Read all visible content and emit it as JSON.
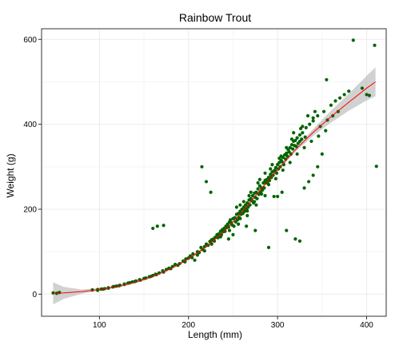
{
  "chart_data": {
    "type": "scatter",
    "title": "Rainbow Trout",
    "xlabel": "Length (mm)",
    "ylabel": "Weight (g)",
    "xlim": [
      35,
      422
    ],
    "ylim": [
      -52,
      625
    ],
    "xticks": [
      100,
      200,
      300,
      400
    ],
    "yticks": [
      0,
      200,
      400,
      600
    ],
    "grid": true,
    "legend": "none",
    "colors": {
      "points": "#006400",
      "fit": "#ff0000",
      "ribbon": "#bdbdbd",
      "border": "#333333",
      "grid": "#ebebeb"
    },
    "series": [
      {
        "type": "scatter",
        "points": [
          [
            48,
            3
          ],
          [
            52,
            2
          ],
          [
            55,
            4
          ],
          [
            92,
            10
          ],
          [
            98,
            11
          ],
          [
            102,
            12
          ],
          [
            106,
            13
          ],
          [
            110,
            15
          ],
          [
            115,
            17
          ],
          [
            119,
            19
          ],
          [
            123,
            21
          ],
          [
            128,
            23
          ],
          [
            132,
            26
          ],
          [
            137,
            29
          ],
          [
            141,
            31
          ],
          [
            145,
            34
          ],
          [
            150,
            37
          ],
          [
            156,
            41
          ],
          [
            160,
            44
          ],
          [
            163,
            47
          ],
          [
            167,
            50
          ],
          [
            171,
            55
          ],
          [
            175,
            58
          ],
          [
            178,
            61
          ],
          [
            182,
            65
          ],
          [
            185,
            70
          ],
          [
            190,
            72
          ],
          [
            194,
            78
          ],
          [
            197,
            83
          ],
          [
            200,
            85
          ],
          [
            202,
            90
          ],
          [
            205,
            95
          ],
          [
            207,
            80
          ],
          [
            210,
            100
          ],
          [
            212,
            98
          ],
          [
            214,
            110
          ],
          [
            216,
            105
          ],
          [
            218,
            112
          ],
          [
            220,
            118
          ],
          [
            222,
            115
          ],
          [
            224,
            124
          ],
          [
            226,
            128
          ],
          [
            228,
            130
          ],
          [
            230,
            134
          ],
          [
            232,
            140
          ],
          [
            234,
            142
          ],
          [
            236,
            148
          ],
          [
            238,
            152
          ],
          [
            240,
            155
          ],
          [
            242,
            160
          ],
          [
            244,
            165
          ],
          [
            246,
            170
          ],
          [
            248,
            168
          ],
          [
            250,
            178
          ],
          [
            252,
            180
          ],
          [
            254,
            188
          ],
          [
            256,
            190
          ],
          [
            258,
            195
          ],
          [
            260,
            200
          ],
          [
            262,
            205
          ],
          [
            264,
            210
          ],
          [
            266,
            215
          ],
          [
            268,
            222
          ],
          [
            270,
            225
          ],
          [
            272,
            232
          ],
          [
            274,
            238
          ],
          [
            276,
            240
          ],
          [
            278,
            248
          ],
          [
            280,
            255
          ],
          [
            282,
            250
          ],
          [
            284,
            262
          ],
          [
            286,
            268
          ],
          [
            288,
            270
          ],
          [
            290,
            275
          ],
          [
            292,
            282
          ],
          [
            294,
            288
          ],
          [
            296,
            290
          ],
          [
            298,
            298
          ],
          [
            300,
            305
          ],
          [
            302,
            310
          ],
          [
            304,
            315
          ],
          [
            306,
            322
          ],
          [
            308,
            328
          ],
          [
            310,
            332
          ],
          [
            312,
            340
          ],
          [
            314,
            345
          ],
          [
            316,
            352
          ],
          [
            318,
            360
          ],
          [
            320,
            362
          ],
          [
            322,
            368
          ],
          [
            325,
            375
          ],
          [
            328,
            380
          ],
          [
            332,
            392
          ],
          [
            336,
            400
          ],
          [
            340,
            408
          ],
          [
            345,
            420
          ],
          [
            352,
            430
          ],
          [
            360,
            445
          ],
          [
            365,
            455
          ],
          [
            370,
            462
          ],
          [
            375,
            470
          ],
          [
            380,
            478
          ],
          [
            395,
            485
          ],
          [
            400,
            470
          ],
          [
            160,
            155
          ],
          [
            165,
            160
          ],
          [
            172,
            162
          ],
          [
            215,
            300
          ],
          [
            220,
            265
          ],
          [
            225,
            240
          ],
          [
            245,
            130
          ],
          [
            250,
            140
          ],
          [
            265,
            160
          ],
          [
            275,
            150
          ],
          [
            290,
            110
          ],
          [
            300,
            230
          ],
          [
            310,
            150
          ],
          [
            320,
            130
          ],
          [
            325,
            125
          ],
          [
            330,
            250
          ],
          [
            335,
            265
          ],
          [
            340,
            280
          ],
          [
            345,
            300
          ],
          [
            350,
            330
          ],
          [
            355,
            505
          ],
          [
            385,
            598
          ],
          [
            403,
            468
          ],
          [
            409,
            586
          ],
          [
            411,
            301
          ],
          [
            305,
            240
          ],
          [
            296,
            230
          ],
          [
            286,
            232
          ],
          [
            276,
            210
          ],
          [
            266,
            185
          ],
          [
            256,
            165
          ],
          [
            246,
            150
          ],
          [
            236,
            135
          ],
          [
            226,
            118
          ],
          [
            218,
            102
          ],
          [
            210,
            92
          ],
          [
            204,
            86
          ],
          [
            196,
            76
          ],
          [
            188,
            68
          ],
          [
            180,
            60
          ],
          [
            172,
            52
          ],
          [
            164,
            46
          ],
          [
            158,
            42
          ],
          [
            152,
            38
          ],
          [
            146,
            33
          ],
          [
            140,
            30
          ],
          [
            134,
            27
          ],
          [
            128,
            24
          ],
          [
            122,
            20
          ],
          [
            116,
            18
          ],
          [
            110,
            14
          ],
          [
            104,
            12
          ],
          [
            98,
            9
          ],
          [
            254,
            205
          ],
          [
            262,
            218
          ],
          [
            270,
            240
          ],
          [
            278,
            262
          ],
          [
            286,
            285
          ],
          [
            294,
            305
          ],
          [
            302,
            320
          ],
          [
            310,
            345
          ],
          [
            318,
            380
          ],
          [
            326,
            390
          ],
          [
            334,
            420
          ],
          [
            342,
            430
          ],
          [
            258,
            178
          ],
          [
            266,
            196
          ],
          [
            274,
            218
          ],
          [
            282,
            236
          ],
          [
            290,
            258
          ],
          [
            298,
            272
          ],
          [
            306,
            292
          ],
          [
            314,
            310
          ],
          [
            322,
            330
          ],
          [
            330,
            345
          ],
          [
            338,
            360
          ],
          [
            346,
            372
          ],
          [
            354,
            385
          ],
          [
            239,
            147
          ],
          [
            243,
            157
          ],
          [
            247,
            175
          ],
          [
            251,
            160
          ],
          [
            255,
            175
          ],
          [
            259,
            188
          ],
          [
            263,
            195
          ],
          [
            267,
            205
          ],
          [
            271,
            220
          ],
          [
            275,
            228
          ],
          [
            279,
            235
          ],
          [
            283,
            245
          ],
          [
            287,
            262
          ],
          [
            291,
            268
          ],
          [
            295,
            280
          ],
          [
            299,
            285
          ],
          [
            303,
            300
          ],
          [
            307,
            305
          ],
          [
            311,
            325
          ],
          [
            315,
            330
          ],
          [
            319,
            350
          ],
          [
            323,
            355
          ],
          [
            327,
            365
          ],
          [
            331,
            370
          ],
          [
            229,
            125
          ],
          [
            233,
            133
          ],
          [
            237,
            140
          ],
          [
            241,
            148
          ],
          [
            245,
            158
          ],
          [
            249,
            163
          ],
          [
            253,
            170
          ],
          [
            257,
            180
          ],
          [
            261,
            190
          ],
          [
            265,
            200
          ],
          [
            269,
            210
          ],
          [
            273,
            215
          ],
          [
            277,
            225
          ],
          [
            281,
            240
          ],
          [
            285,
            250
          ],
          [
            289,
            265
          ],
          [
            293,
            275
          ],
          [
            297,
            292
          ],
          [
            301,
            295
          ],
          [
            305,
            312
          ],
          [
            309,
            318
          ],
          [
            313,
            335
          ],
          [
            317,
            342
          ],
          [
            321,
            348
          ],
          [
            325,
            360
          ],
          [
            258,
            210
          ],
          [
            268,
            232
          ],
          [
            280,
            270
          ],
          [
            292,
            295
          ],
          [
            304,
            325
          ],
          [
            316,
            365
          ],
          [
            328,
            395
          ],
          [
            340,
            415
          ],
          [
            348,
            395
          ],
          [
            356,
            410
          ],
          [
            362,
            420
          ],
          [
            368,
            430
          ]
        ]
      },
      {
        "type": "line",
        "name": "",
        "points": [
          [
            48,
            2
          ],
          [
            60,
            3
          ],
          [
            80,
            6
          ],
          [
            100,
            11
          ],
          [
            120,
            18
          ],
          [
            140,
            28
          ],
          [
            160,
            42
          ],
          [
            180,
            60
          ],
          [
            200,
            83
          ],
          [
            220,
            112
          ],
          [
            240,
            148
          ],
          [
            260,
            193
          ],
          [
            280,
            244
          ],
          [
            300,
            293
          ],
          [
            320,
            340
          ],
          [
            340,
            381
          ],
          [
            360,
            418
          ],
          [
            380,
            452
          ],
          [
            400,
            485
          ],
          [
            410,
            500
          ]
        ]
      },
      {
        "type": "ribbon",
        "upper": [
          [
            48,
            28
          ],
          [
            60,
            17
          ],
          [
            80,
            11
          ],
          [
            100,
            14
          ],
          [
            120,
            21
          ],
          [
            140,
            31
          ],
          [
            160,
            45
          ],
          [
            180,
            63
          ],
          [
            200,
            86
          ],
          [
            220,
            115
          ],
          [
            240,
            151
          ],
          [
            260,
            196
          ],
          [
            280,
            247
          ],
          [
            300,
            297
          ],
          [
            320,
            345
          ],
          [
            340,
            389
          ],
          [
            360,
            432
          ],
          [
            380,
            472
          ],
          [
            400,
            514
          ],
          [
            410,
            534
          ]
        ],
        "lower": [
          [
            48,
            -24
          ],
          [
            60,
            -11
          ],
          [
            80,
            1
          ],
          [
            100,
            8
          ],
          [
            120,
            15
          ],
          [
            140,
            25
          ],
          [
            160,
            39
          ],
          [
            180,
            57
          ],
          [
            200,
            80
          ],
          [
            220,
            109
          ],
          [
            240,
            145
          ],
          [
            260,
            190
          ],
          [
            280,
            241
          ],
          [
            300,
            289
          ],
          [
            320,
            335
          ],
          [
            340,
            373
          ],
          [
            360,
            404
          ],
          [
            380,
            432
          ],
          [
            400,
            456
          ],
          [
            410,
            466
          ]
        ]
      }
    ]
  }
}
